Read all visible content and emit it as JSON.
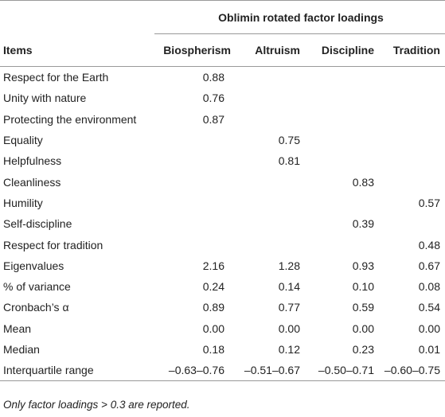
{
  "table": {
    "group_header": "Oblimin rotated factor loadings",
    "columns": [
      "Items",
      "Biospherism",
      "Altruism",
      "Discipline",
      "Tradition"
    ],
    "rows": [
      [
        "Respect for the Earth",
        "0.88",
        "",
        "",
        ""
      ],
      [
        "Unity with nature",
        "0.76",
        "",
        "",
        ""
      ],
      [
        "Protecting the environment",
        "0.87",
        "",
        "",
        ""
      ],
      [
        "Equality",
        "",
        "0.75",
        "",
        ""
      ],
      [
        "Helpfulness",
        "",
        "0.81",
        "",
        ""
      ],
      [
        "Cleanliness",
        "",
        "",
        "0.83",
        ""
      ],
      [
        "Humility",
        "",
        "",
        "",
        "0.57"
      ],
      [
        "Self-discipline",
        "",
        "",
        "0.39",
        ""
      ],
      [
        "Respect for tradition",
        "",
        "",
        "",
        "0.48"
      ],
      [
        "Eigenvalues",
        "2.16",
        "1.28",
        "0.93",
        "0.67"
      ],
      [
        "% of variance",
        "0.24",
        "0.14",
        "0.10",
        "0.08"
      ],
      [
        "Cronbach’s α",
        "0.89",
        "0.77",
        "0.59",
        "0.54"
      ],
      [
        "Mean",
        "0.00",
        "0.00",
        "0.00",
        "0.00"
      ],
      [
        "Median",
        "0.18",
        "0.12",
        "0.23",
        "0.01"
      ],
      [
        "Interquartile range",
        "–0.63–0.76",
        "–0.51–0.67",
        "–0.50–0.71",
        "–0.60–0.75"
      ]
    ]
  },
  "footnote": "Only factor loadings > 0.3 are reported."
}
